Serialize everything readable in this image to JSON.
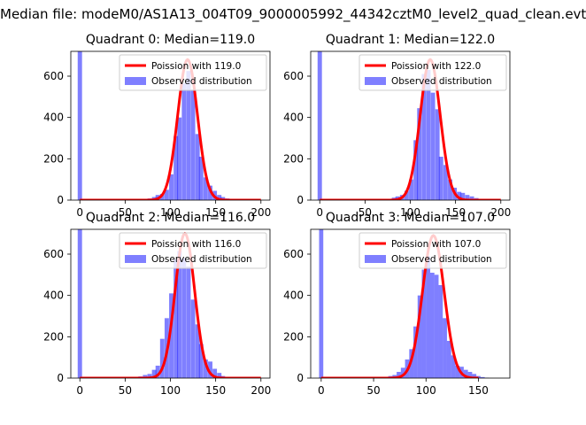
{
  "figure": {
    "suptitle": "Median file: modeM0/AS1A13_004T09_9000005992_44342cztM0_level2_quad_clean.evt"
  },
  "colors": {
    "observed": "#0000ff",
    "observed_alpha": 0.5,
    "poisson": "#ff0000"
  },
  "chart_data": [
    {
      "type": "bar",
      "title": "Quadrant 0: Median=119.0",
      "xlim": [
        -10,
        210
      ],
      "ylim": [
        0,
        720
      ],
      "xticks": [
        0,
        50,
        100,
        150,
        200
      ],
      "yticks": [
        0,
        200,
        400,
        600
      ],
      "legend_position": "top-right",
      "poisson": {
        "name": "Poission with 119.0",
        "mean": 119.0,
        "peak": 680
      },
      "observed": {
        "name": "Observed distribution",
        "bin_width": 4.8,
        "spike": {
          "x": 0,
          "y": 720
        },
        "x": [
          72,
          77,
          82,
          86,
          91,
          96,
          101,
          106,
          110,
          115,
          120,
          125,
          130,
          134,
          139,
          144,
          149,
          154,
          158,
          163,
          168,
          173,
          178,
          182,
          187
        ],
        "values": [
          2,
          8,
          15,
          25,
          30,
          50,
          125,
          310,
          400,
          565,
          625,
          535,
          320,
          210,
          110,
          70,
          45,
          25,
          15,
          8,
          5,
          3,
          2,
          1,
          1
        ]
      }
    },
    {
      "type": "bar",
      "title": "Quadrant 1: Median=122.0",
      "xlim": [
        -10,
        210
      ],
      "ylim": [
        0,
        720
      ],
      "xticks": [
        0,
        50,
        100,
        150,
        200
      ],
      "yticks": [
        0,
        200,
        400,
        600
      ],
      "legend_position": "top-right",
      "poisson": {
        "name": "Poission with 122.0",
        "mean": 122.0,
        "peak": 680
      },
      "observed": {
        "name": "Observed distribution",
        "bin_width": 4.8,
        "spike": {
          "x": 0,
          "y": 720
        },
        "x": [
          72,
          77,
          82,
          86,
          91,
          96,
          101,
          106,
          110,
          115,
          120,
          125,
          130,
          134,
          139,
          144,
          149,
          154,
          158,
          163,
          168,
          173,
          178,
          182,
          187,
          192,
          197
        ],
        "values": [
          2,
          6,
          12,
          18,
          25,
          45,
          100,
          290,
          445,
          610,
          630,
          520,
          440,
          210,
          170,
          100,
          60,
          40,
          35,
          25,
          18,
          10,
          5,
          3,
          2,
          1,
          1
        ]
      }
    },
    {
      "type": "bar",
      "title": "Quadrant 2: Median=116.0",
      "xlim": [
        -10,
        210
      ],
      "ylim": [
        0,
        720
      ],
      "xticks": [
        0,
        50,
        100,
        150,
        200
      ],
      "yticks": [
        0,
        200,
        400,
        600
      ],
      "legend_position": "top-right",
      "poisson": {
        "name": "Poission with 116.0",
        "mean": 116.0,
        "peak": 700
      },
      "observed": {
        "name": "Observed distribution",
        "bin_width": 4.8,
        "spike": {
          "x": 0,
          "y": 720
        },
        "x": [
          67,
          72,
          77,
          82,
          86,
          91,
          96,
          101,
          106,
          110,
          115,
          120,
          125,
          130,
          134,
          139,
          144,
          149,
          154,
          158,
          163
        ],
        "values": [
          8,
          15,
          20,
          40,
          60,
          190,
          290,
          410,
          575,
          615,
          580,
          540,
          380,
          260,
          165,
          90,
          80,
          45,
          25,
          10,
          5
        ]
      }
    },
    {
      "type": "bar",
      "title": "Quadrant 3: Median=107.0",
      "xlim": [
        -10,
        180
      ],
      "ylim": [
        0,
        720
      ],
      "xticks": [
        0,
        50,
        100,
        150
      ],
      "yticks": [
        0,
        200,
        400,
        600
      ],
      "legend_position": "top-right",
      "poisson": {
        "name": "Poission with 107.0",
        "mean": 107.0,
        "peak": 690
      },
      "observed": {
        "name": "Observed distribution",
        "bin_width": 4.0,
        "spike": {
          "x": 0,
          "y": 720
        },
        "x": [
          62,
          66,
          70,
          74,
          78,
          82,
          86,
          90,
          94,
          98,
          102,
          106,
          110,
          114,
          118,
          122,
          126,
          130,
          134,
          138,
          142,
          146,
          150,
          154,
          158
        ],
        "values": [
          5,
          10,
          15,
          30,
          50,
          90,
          140,
          250,
          400,
          525,
          590,
          510,
          500,
          450,
          290,
          180,
          110,
          60,
          55,
          40,
          30,
          20,
          10,
          5,
          2
        ]
      }
    }
  ]
}
